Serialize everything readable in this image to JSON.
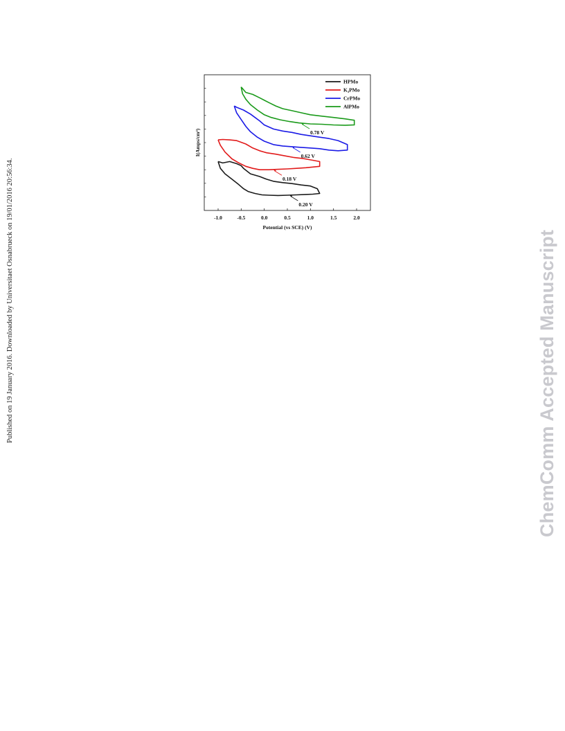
{
  "sidebar_note": "Published on 19 January 2016. Downloaded by Universitaet Osnabrueck on 19/01/2016 20:56:34.",
  "watermark": "ChemComm Accepted Manuscript",
  "chart_data": {
    "type": "line",
    "title": "",
    "xlabel": "Potential (vs SCE) (V)",
    "ylabel": "I(Amps/cm²)",
    "xlim": [
      -1.3,
      2.3
    ],
    "ylim": [
      0,
      100
    ],
    "xticks": [
      "-1.0",
      "-0.5",
      "0.0",
      "0.5",
      "1.0",
      "1.5",
      "2.0"
    ],
    "xtick_values": [
      -1.0,
      -0.5,
      0.0,
      0.5,
      1.0,
      1.5,
      2.0
    ],
    "yticks_labeled": false,
    "grid": false,
    "legend": "top-right",
    "series": [
      {
        "name": "HPMo",
        "color": "#1a1a1a",
        "x": [
          -1.0,
          -0.95,
          -0.85,
          -0.7,
          -0.55,
          -0.45,
          -0.35,
          -0.2,
          -0.05,
          0.1,
          0.3,
          0.5,
          0.7,
          0.9,
          1.05,
          1.2,
          1.15,
          1.0,
          0.8,
          0.6,
          0.4,
          0.2,
          0.05,
          -0.1,
          -0.3,
          -0.45,
          -0.5,
          -0.6,
          -0.75,
          -0.9,
          -1.0
        ],
        "y": [
          36,
          31,
          27,
          23,
          19,
          16,
          14,
          12.5,
          11.5,
          11.2,
          11.0,
          11.2,
          11.5,
          11.8,
          12,
          12.5,
          16,
          18,
          18.8,
          19.8,
          20.5,
          21.5,
          23,
          25,
          27,
          31,
          33,
          34.5,
          36,
          35,
          36
        ]
      },
      {
        "name": "K₃PMo",
        "color": "#e11a1a",
        "x": [
          -1.0,
          -0.95,
          -0.85,
          -0.7,
          -0.55,
          -0.4,
          -0.25,
          -0.1,
          0.1,
          0.3,
          0.5,
          0.7,
          0.9,
          1.05,
          1.2,
          1.2,
          1.05,
          0.85,
          0.65,
          0.45,
          0.25,
          0.05,
          -0.1,
          -0.25,
          -0.4,
          -0.6,
          -0.75,
          -0.9,
          -1.0
        ],
        "y": [
          52,
          48,
          43,
          38,
          35,
          32.5,
          31,
          30,
          30,
          30.3,
          30.6,
          31,
          31.5,
          32,
          32.5,
          36,
          37,
          38.2,
          39,
          40.2,
          41.5,
          42.5,
          44,
          46,
          49,
          51.5,
          52,
          52.3,
          52
        ]
      },
      {
        "name": "CrPMo",
        "color": "#1a1ae6",
        "x": [
          -0.65,
          -0.6,
          -0.5,
          -0.4,
          -0.3,
          -0.15,
          0.0,
          0.2,
          0.4,
          0.6,
          0.8,
          1.0,
          1.2,
          1.4,
          1.6,
          1.8,
          1.8,
          1.6,
          1.4,
          1.2,
          1.0,
          0.8,
          0.6,
          0.4,
          0.2,
          0.0,
          -0.1,
          -0.2,
          -0.3,
          -0.45,
          -0.6,
          -0.65
        ],
        "y": [
          77,
          72,
          67,
          62,
          58,
          54,
          51,
          48.5,
          47.5,
          47,
          46.5,
          46,
          45.5,
          44.5,
          44,
          44.5,
          48.5,
          51.5,
          53,
          54,
          55,
          56,
          57.5,
          58.5,
          60,
          63,
          66,
          68.5,
          71,
          74,
          76,
          77
        ]
      },
      {
        "name": "AlPMo",
        "color": "#1a9a1a",
        "x": [
          -0.5,
          -0.47,
          -0.4,
          -0.3,
          -0.15,
          0.0,
          0.15,
          0.35,
          0.55,
          0.75,
          1.0,
          1.25,
          1.5,
          1.75,
          1.95,
          1.95,
          1.75,
          1.5,
          1.25,
          1.0,
          0.8,
          0.6,
          0.4,
          0.25,
          0.1,
          -0.1,
          -0.25,
          -0.4,
          -0.5
        ],
        "y": [
          91,
          86,
          82,
          78,
          74,
          70.5,
          68.5,
          66.8,
          65.5,
          64.5,
          63.8,
          63.5,
          63,
          62.8,
          63,
          66.5,
          67.5,
          68.5,
          69.5,
          70.5,
          72,
          73.5,
          75,
          77,
          79.5,
          83,
          85.5,
          87,
          91
        ]
      }
    ],
    "annotations": [
      {
        "text": "0.20 V",
        "series": "HPMo",
        "x": 0.55,
        "y": 11.2
      },
      {
        "text": "0.18 V",
        "series": "K₃PMo",
        "x": 0.2,
        "y": 30.0
      },
      {
        "text": "0.62 V",
        "series": "CrPMo",
        "x": 0.6,
        "y": 47.0
      },
      {
        "text": "0.78 V",
        "series": "AlPMo",
        "x": 0.8,
        "y": 64.3
      }
    ]
  }
}
